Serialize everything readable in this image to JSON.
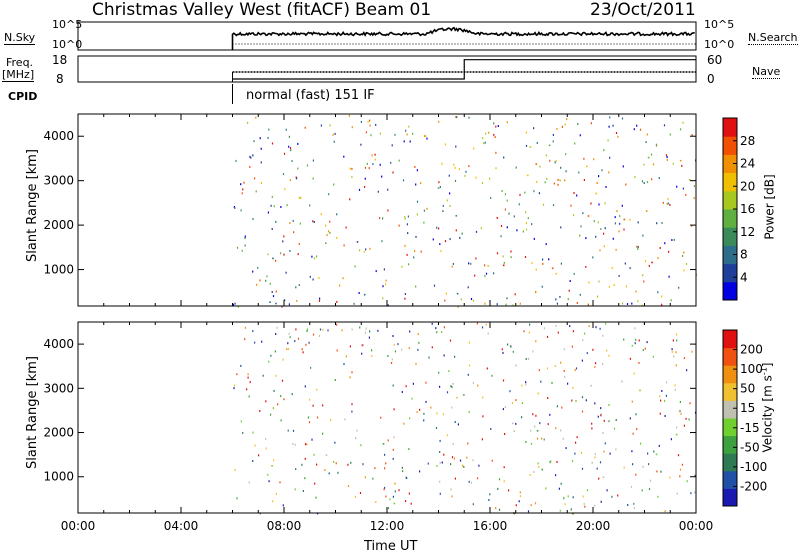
{
  "header": {
    "station": "Christmas Valley West (fitACF)",
    "beam": "Beam 01",
    "date": "23/Oct/2011"
  },
  "nsky_panel": {
    "left_label": "N.Sky",
    "left_ticks": [
      "10^5",
      "10^0"
    ],
    "right_label": "N.Search",
    "right_ticks": [
      "10^5",
      "10^0"
    ]
  },
  "freq_panel": {
    "left_label_top": "Freq.",
    "left_label_bottom": "[MHz]",
    "left_ticks": [
      "18",
      "8"
    ],
    "right_label": "Nave",
    "right_ticks": [
      "60",
      "0"
    ]
  },
  "cpid": {
    "label": "CPID",
    "mode": "normal (fast) 151 IF"
  },
  "power_panel": {
    "ylabel": "Slant Range [km]",
    "yticks": [
      "4000",
      "3000",
      "2000",
      "1000"
    ],
    "colorbar_label": "Power [dB]",
    "colorbar_ticks": [
      "28",
      "24",
      "20",
      "16",
      "12",
      "8",
      "4"
    ],
    "colors": [
      "#0000e0",
      "#1e3f9a",
      "#2d6d8a",
      "#3b8a5a",
      "#5fb040",
      "#a8c820",
      "#f0c000",
      "#f09000",
      "#f05000",
      "#e01010"
    ]
  },
  "velocity_panel": {
    "ylabel": "Slant Range [km]",
    "yticks": [
      "4000",
      "3000",
      "2000",
      "1000"
    ],
    "colorbar_label": "Velocity [m s",
    "colorbar_label_sup": "-1",
    "colorbar_label_end": "]",
    "colorbar_ticks": [
      "200",
      "100",
      "50",
      "15",
      "-15",
      "-50",
      "-100",
      "-200"
    ],
    "colors": [
      "#1a1ab0",
      "#2050a8",
      "#2e7a55",
      "#3fa040",
      "#70d030",
      "#c0c0b0",
      "#f0c030",
      "#f09010",
      "#f05010",
      "#e01010"
    ]
  },
  "xaxis": {
    "label": "Time UT",
    "ticks": [
      "00:00",
      "04:00",
      "08:00",
      "12:00",
      "16:00",
      "20:00",
      "00:00"
    ]
  },
  "chart_data": {
    "type": "heatmap",
    "x_range_hours": [
      0,
      24
    ],
    "y_range_km": [
      180,
      4500
    ],
    "data_start_hour": 6.0,
    "nsky_level": 0.35,
    "freq_mhz": 10,
    "nave_steps": [
      [
        6.0,
        0
      ],
      [
        15.0,
        58
      ]
    ],
    "power_regions": [
      {
        "t0": 6.0,
        "t1": 24.0,
        "r0": 200,
        "r1": 500,
        "value": 10
      },
      {
        "t0": 7.5,
        "t1": 10.5,
        "r0": 1200,
        "r1": 1700,
        "value": 12
      },
      {
        "t0": 10.5,
        "t1": 12.0,
        "r0": 1400,
        "r1": 1900,
        "value": 8
      },
      {
        "t0": 13.5,
        "t1": 15.0,
        "r0": 2200,
        "r1": 3900,
        "value": 14
      },
      {
        "t0": 15.0,
        "t1": 16.0,
        "r0": 1000,
        "r1": 2200,
        "value": 20
      },
      {
        "t0": 16.0,
        "t1": 24.0,
        "r0": 1000,
        "r1": 1500,
        "value": 28
      },
      {
        "t0": 16.0,
        "t1": 24.0,
        "r0": 1900,
        "r1": 2400,
        "value": 26
      },
      {
        "t0": 16.5,
        "t1": 24.0,
        "r0": 2600,
        "r1": 3500,
        "value": 20
      },
      {
        "t0": 17.5,
        "t1": 23.0,
        "r0": 3400,
        "r1": 3900,
        "value": 18
      }
    ],
    "velocity_regions": [
      {
        "t0": 6.0,
        "t1": 13.0,
        "r0": 200,
        "r1": 500,
        "value": 20
      },
      {
        "t0": 7.5,
        "t1": 10.5,
        "r0": 1200,
        "r1": 1700,
        "value": 0
      },
      {
        "t0": 10.5,
        "t1": 12.0,
        "r0": 1300,
        "r1": 2000,
        "value": -50
      },
      {
        "t0": 13.5,
        "t1": 15.0,
        "r0": 2200,
        "r1": 3900,
        "value": 30
      },
      {
        "t0": 15.0,
        "t1": 24.0,
        "r0": 1000,
        "r1": 1600,
        "value": 0
      },
      {
        "t0": 16.0,
        "t1": 24.0,
        "r0": 1900,
        "r1": 2500,
        "value": 0
      },
      {
        "t0": 16.5,
        "t1": 22.0,
        "r0": 2600,
        "r1": 3800,
        "value": 30
      }
    ]
  }
}
